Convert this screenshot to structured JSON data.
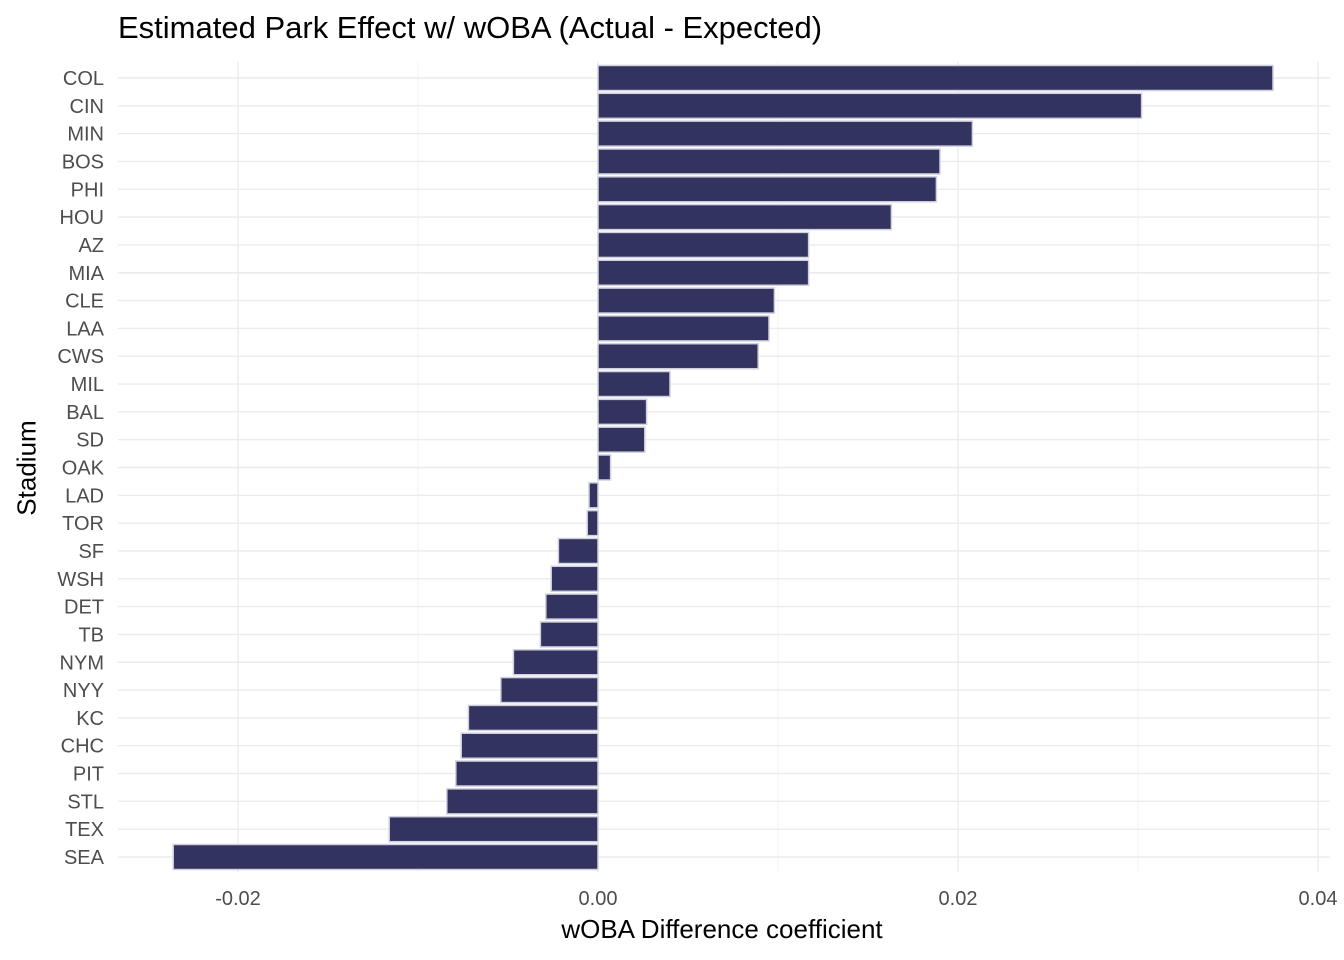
{
  "chart_data": {
    "type": "bar",
    "orientation": "horizontal",
    "title": "Estimated Park Effect w/ wOBA (Actual - Expected)",
    "xlabel": "wOBA Difference coefficient",
    "ylabel": "Stadium",
    "xlim": [
      -0.0235,
      0.0375
    ],
    "x_ticks": [
      -0.02,
      0.0,
      0.02,
      0.04
    ],
    "x_tick_labels": [
      "-0.02",
      "0.00",
      "0.02",
      "0.04"
    ],
    "grid": true,
    "bar_color": "#33335f",
    "bar_edge_color": "#d0d0e0",
    "categories": [
      "COL",
      "CIN",
      "MIN",
      "BOS",
      "PHI",
      "HOU",
      "AZ",
      "MIA",
      "CLE",
      "LAA",
      "CWS",
      "MIL",
      "BAL",
      "SD",
      "OAK",
      "LAD",
      "TOR",
      "SF",
      "WSH",
      "DET",
      "TB",
      "NYM",
      "NYY",
      "KC",
      "CHC",
      "PIT",
      "STL",
      "TEX",
      "SEA"
    ],
    "values": [
      0.0375,
      0.0302,
      0.0208,
      0.019,
      0.0188,
      0.0163,
      0.0117,
      0.0117,
      0.0098,
      0.0095,
      0.0089,
      0.004,
      0.0027,
      0.0026,
      0.0007,
      -0.0005,
      -0.0006,
      -0.0022,
      -0.0026,
      -0.0029,
      -0.0032,
      -0.0047,
      -0.0054,
      -0.0072,
      -0.0076,
      -0.0079,
      -0.0084,
      -0.0116,
      -0.0236
    ]
  }
}
